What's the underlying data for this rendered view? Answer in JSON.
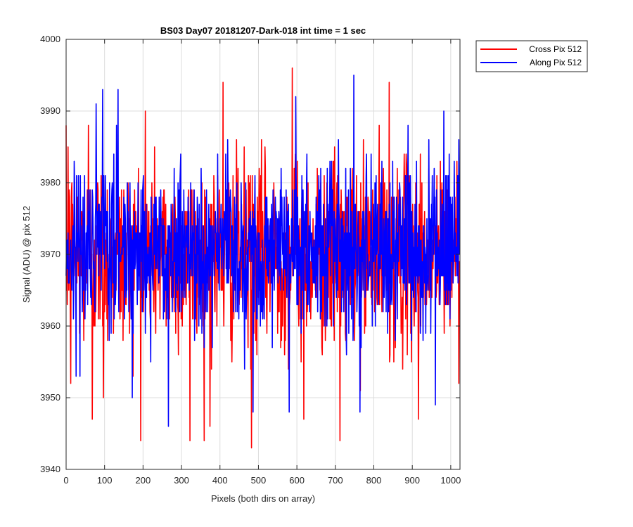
{
  "chart_data": {
    "type": "line",
    "title": "BS03 Day07 20181207-Dark-018 int time = 1 sec",
    "xlabel": "Pixels (both dirs on array)",
    "ylabel": "Signal (ADU) @ pix 512",
    "xlim": [
      0,
      1024
    ],
    "ylim": [
      3940,
      4000
    ],
    "xticks": [
      0,
      100,
      200,
      300,
      400,
      500,
      600,
      700,
      800,
      900,
      1000
    ],
    "yticks": [
      3940,
      3950,
      3960,
      3970,
      3980,
      3990,
      4000
    ],
    "grid": true,
    "legend_position": "outside-top-right",
    "series": [
      {
        "name": "Cross Pix 512",
        "color": "#ff0000",
        "mean": 3970,
        "noise_sigma": 6.5,
        "n_points": 1024,
        "annotated_values": [
          {
            "x": 5,
            "y": 3985
          },
          {
            "x": 12,
            "y": 3952
          },
          {
            "x": 58,
            "y": 3988
          },
          {
            "x": 68,
            "y": 3947
          },
          {
            "x": 97,
            "y": 3950
          },
          {
            "x": 206,
            "y": 3990
          },
          {
            "x": 322,
            "y": 3944
          },
          {
            "x": 374,
            "y": 3946
          },
          {
            "x": 408,
            "y": 3994
          },
          {
            "x": 482,
            "y": 3943
          },
          {
            "x": 588,
            "y": 3996
          },
          {
            "x": 618,
            "y": 3947
          },
          {
            "x": 712,
            "y": 3944
          },
          {
            "x": 840,
            "y": 3994
          },
          {
            "x": 916,
            "y": 3947
          },
          {
            "x": 1018,
            "y": 3978
          }
        ]
      },
      {
        "name": "Along Pix 512",
        "color": "#0000ff",
        "mean": 3971,
        "noise_sigma": 5.8,
        "n_points": 1024,
        "annotated_values": [
          {
            "x": 95,
            "y": 3993
          },
          {
            "x": 135,
            "y": 3993
          },
          {
            "x": 266,
            "y": 3946
          },
          {
            "x": 486,
            "y": 3948
          },
          {
            "x": 580,
            "y": 3948
          },
          {
            "x": 597,
            "y": 3992
          },
          {
            "x": 748,
            "y": 3995
          },
          {
            "x": 764,
            "y": 3948
          },
          {
            "x": 960,
            "y": 3949
          },
          {
            "x": 982,
            "y": 3990
          }
        ]
      }
    ]
  }
}
